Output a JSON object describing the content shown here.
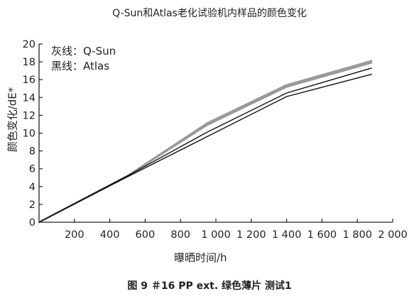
{
  "chart_data": {
    "type": "line",
    "title": "Q-Sun和Atlas老化试验机内样品的颜色变化",
    "caption": "图 9  ＃16 PP ext. 绿色薄片 测试1",
    "xlabel": "曝晒时间/h",
    "ylabel": "颜色变化/dE*",
    "xlim": [
      0,
      2000
    ],
    "ylim": [
      0,
      20
    ],
    "xticks": [
      200,
      400,
      600,
      800,
      1000,
      1200,
      1400,
      1600,
      1800,
      2000
    ],
    "xtick_labels": [
      "200",
      "400",
      "600",
      "800",
      "1 000",
      "1 200",
      "1 400",
      "1 600",
      "1 800",
      "2 000"
    ],
    "yticks": [
      0,
      2,
      4,
      6,
      8,
      10,
      12,
      14,
      16,
      18,
      20
    ],
    "ytick_labels": [
      "0",
      "2",
      "4",
      "6",
      "8",
      "10",
      "12",
      "14",
      "16",
      "18",
      "20"
    ],
    "grid": false,
    "legend": {
      "placement": "top-left",
      "entries": [
        {
          "label": "灰线：Q-Sun",
          "color": "#999999"
        },
        {
          "label": "黑线：Atlas",
          "color": "#111111"
        }
      ]
    },
    "series": [
      {
        "group": "Q-Sun",
        "color": "#999999",
        "x": [
          0,
          500,
          950,
          1400,
          1880
        ],
        "y": [
          0,
          5.2,
          11.1,
          15.4,
          18.1
        ]
      },
      {
        "group": "Q-Sun",
        "color": "#999999",
        "x": [
          0,
          500,
          950,
          1400,
          1880
        ],
        "y": [
          0,
          5.2,
          10.9,
          15.2,
          17.9
        ]
      },
      {
        "group": "Atlas",
        "color": "#111111",
        "x": [
          0,
          500,
          950,
          1400,
          1880
        ],
        "y": [
          0,
          5.2,
          10.1,
          14.5,
          17.3
        ]
      },
      {
        "group": "Atlas",
        "color": "#111111",
        "x": [
          0,
          500,
          950,
          1400,
          1880
        ],
        "y": [
          0,
          5.1,
          9.6,
          14.1,
          16.6
        ]
      }
    ]
  }
}
